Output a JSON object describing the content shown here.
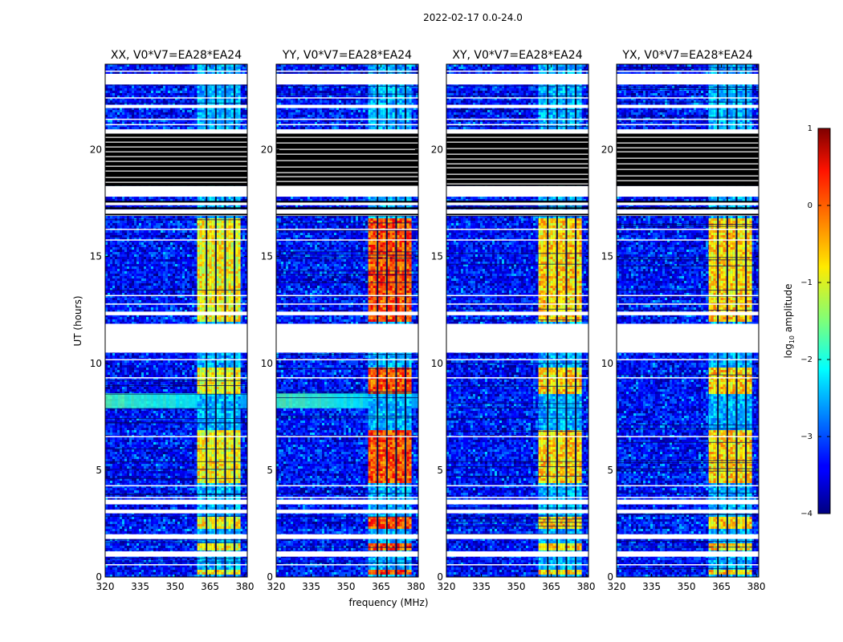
{
  "chart_data": {
    "type": "heatmap",
    "suptitle": "2022-02-17 0.0-24.0",
    "xlabel": "frequency (MHz)",
    "ylabel": "UT (hours)",
    "xlim": [
      320,
      381
    ],
    "ylim": [
      0,
      24
    ],
    "xticks": [
      320,
      335,
      350,
      365,
      380
    ],
    "yticks": [
      0,
      5,
      10,
      15,
      20
    ],
    "colorbar": {
      "label": "log10 amplitude",
      "label_prefix": "log",
      "label_sub": "10",
      "label_suffix": " amplitude",
      "range": [
        -4,
        1
      ],
      "ticks": [
        1,
        0,
        -1,
        -2,
        -3,
        -4
      ],
      "tick_labels": [
        "1",
        "0",
        "−1",
        "−2",
        "−3",
        "−4"
      ],
      "colormap": "jet"
    },
    "rfi_band_mhz": [
      359.5,
      378
    ],
    "rfi_channel_gaps_mhz": [
      363.5,
      367.5,
      371.5,
      375.5
    ],
    "flagged_white_hours": [
      [
        0.95,
        1.2
      ],
      [
        1.78,
        2.0
      ],
      [
        2.98,
        3.15
      ],
      [
        3.4,
        3.62
      ],
      [
        10.5,
        11.85
      ],
      [
        12.25,
        12.42
      ],
      [
        16.9,
        17.2
      ],
      [
        17.4,
        17.55
      ],
      [
        17.8,
        18.3
      ],
      [
        20.75,
        20.95
      ],
      [
        21.95,
        22.1
      ],
      [
        23.05,
        23.55
      ]
    ],
    "flagged_black_hours": [
      [
        18.3,
        20.75
      ]
    ],
    "bright_rfi_hours": [
      [
        0.2,
        0.35
      ],
      [
        1.3,
        1.6
      ],
      [
        2.3,
        2.9
      ],
      [
        4.5,
        6.9
      ],
      [
        8.6,
        9.9
      ],
      [
        12.0,
        16.8
      ]
    ],
    "panels": [
      {
        "title": "XX, V0*V7=EA28*EA24",
        "band_level": 0.62,
        "noise_level": 0.18,
        "broadband_hours": [
          7.9,
          8.6
        ]
      },
      {
        "title": "YY, V0*V7=EA28*EA24",
        "band_level": 0.8,
        "noise_level": 0.2,
        "broadband_hours": [
          7.9,
          8.6
        ]
      },
      {
        "title": "XY, V0*V7=EA28*EA24",
        "band_level": 0.66,
        "noise_level": 0.15,
        "broadband_hours": []
      },
      {
        "title": "YX, V0*V7=EA28*EA24",
        "band_level": 0.66,
        "noise_level": 0.15,
        "broadband_hours": []
      }
    ]
  }
}
